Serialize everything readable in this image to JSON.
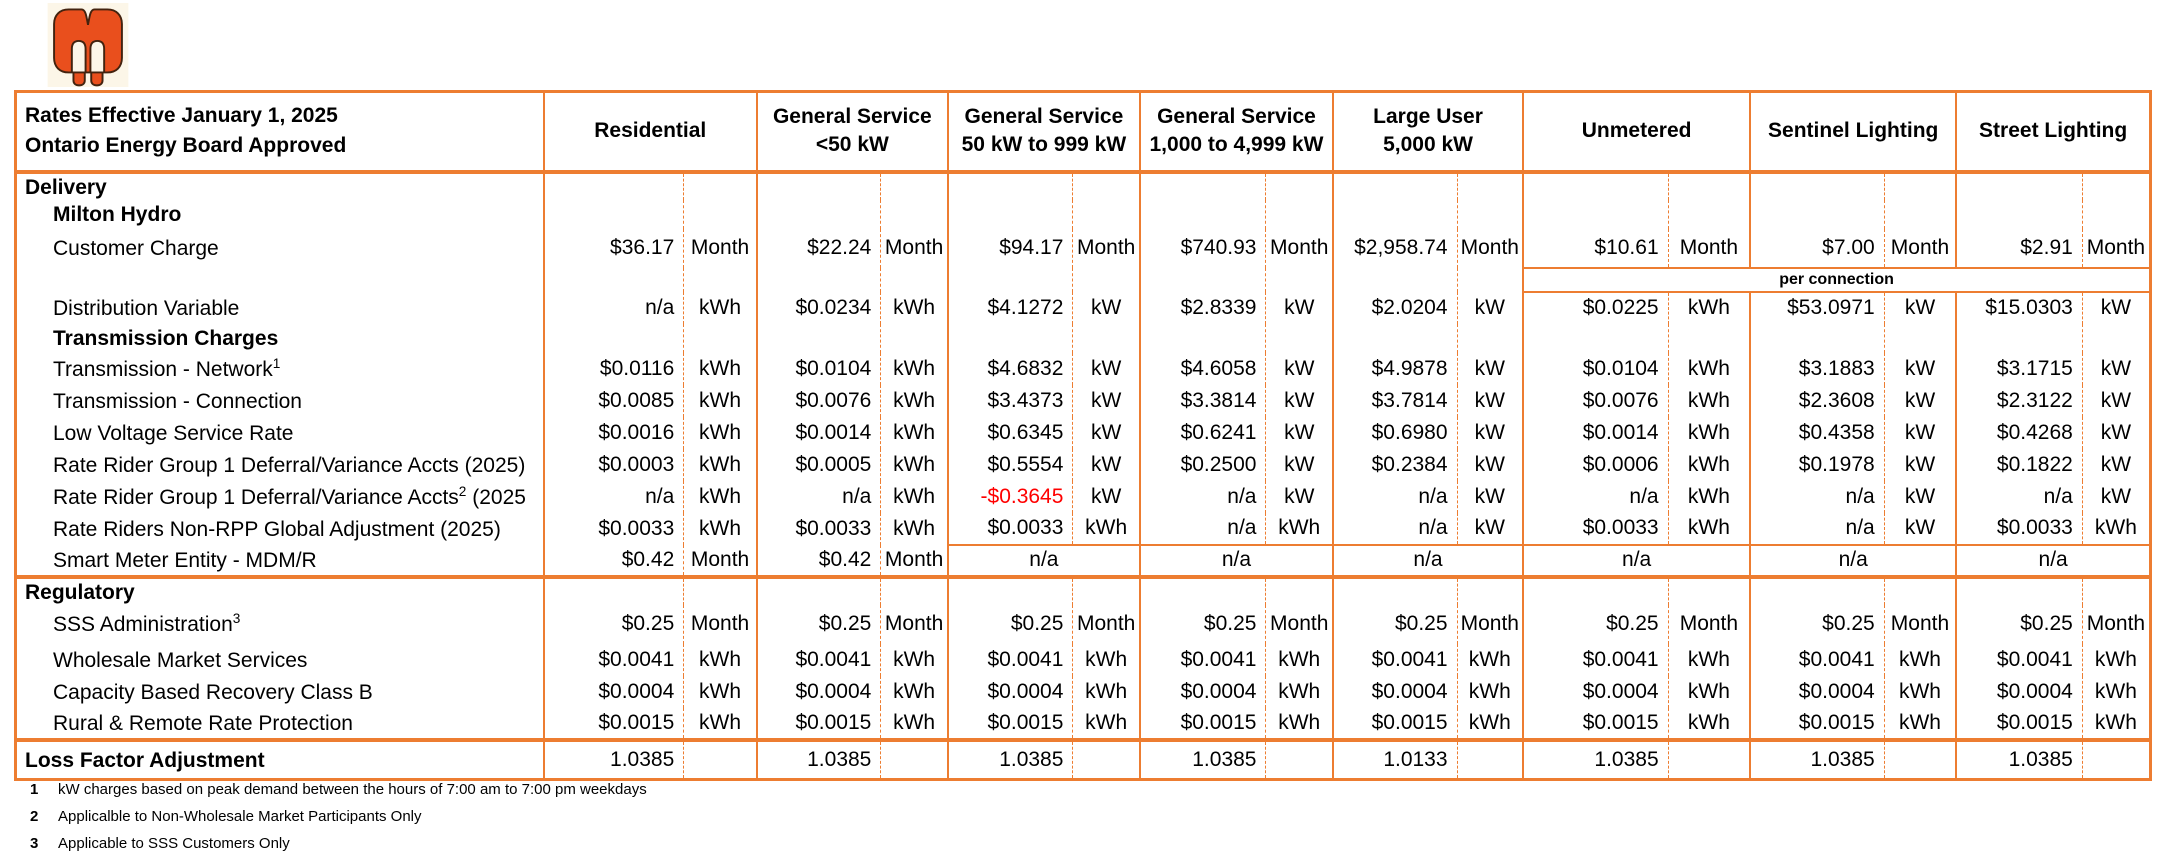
{
  "colors": {
    "table_border": "#ED7D31",
    "negative_value": "#FF0000",
    "logo_orange": "#E94F1D"
  },
  "logo": {
    "name": "milton-hydro-logo"
  },
  "table": {
    "header": {
      "title_line1": "Rates Effective January 1, 2025",
      "title_line2": "Ontario Energy Board Approved",
      "columns": [
        "Residential",
        "General Service\n<50 kW",
        "General Service\n50 kW to 999 kW",
        "General Service\n1,000 to 4,999 kW",
        "Large User\n5,000 kW",
        "Unmetered",
        "Sentinel Lighting",
        "Street Lighting"
      ]
    },
    "rows": [
      {
        "type": "section",
        "indent": 0,
        "label": {
          "pre": "Delivery",
          "sup": "",
          "post": ""
        },
        "cells": [
          {},
          {},
          {},
          {},
          {},
          {},
          {},
          {}
        ]
      },
      {
        "type": "subheader",
        "indent": 1,
        "label": {
          "pre": "Milton Hydro",
          "sup": "",
          "post": ""
        },
        "cells": [
          {},
          {},
          {},
          {},
          {},
          {},
          {},
          {}
        ]
      },
      {
        "type": "item_tall",
        "indent": 1,
        "label": {
          "pre": "Customer Charge",
          "sup": "",
          "post": ""
        },
        "cells": [
          {
            "v": "$36.17",
            "u": "Month"
          },
          {
            "v": "$22.24",
            "u": "Month"
          },
          {
            "v": "$94.17",
            "u": "Month"
          },
          {
            "v": "$740.93",
            "u": "Month"
          },
          {
            "v": "$2,958.74",
            "u": "Month"
          },
          {
            "v": "$10.61",
            "u": "Month"
          },
          {
            "v": "$7.00",
            "u": "Month"
          },
          {
            "v": "$2.91",
            "u": "Month"
          }
        ]
      },
      {
        "type": "band",
        "indent": 0,
        "label": {
          "pre": "",
          "sup": "",
          "post": ""
        },
        "band_text": "per connection",
        "cells": [
          {},
          {},
          {},
          {},
          {}
        ]
      },
      {
        "type": "item",
        "indent": 1,
        "label": {
          "pre": "Distribution Variable",
          "sup": "",
          "post": ""
        },
        "cells": [
          {
            "v": "n/a",
            "u": "kWh"
          },
          {
            "v": "$0.0234",
            "u": "kWh"
          },
          {
            "v": "$4.1272",
            "u": "kW"
          },
          {
            "v": "$2.8339",
            "u": "kW"
          },
          {
            "v": "$2.0204",
            "u": "kW"
          },
          {
            "v": "$0.0225",
            "u": "kWh"
          },
          {
            "v": "$53.0971",
            "u": "kW"
          },
          {
            "v": "$15.0303",
            "u": "kW"
          }
        ]
      },
      {
        "type": "subheader",
        "indent": 1,
        "label": {
          "pre": "Transmission Charges",
          "sup": "",
          "post": ""
        },
        "cells": [
          {},
          {},
          {},
          {},
          {},
          {},
          {},
          {}
        ]
      },
      {
        "type": "item",
        "indent": 1,
        "label": {
          "pre": "Transmission - Network",
          "sup": "1",
          "post": ""
        },
        "cells": [
          {
            "v": "$0.0116",
            "u": "kWh"
          },
          {
            "v": "$0.0104",
            "u": "kWh"
          },
          {
            "v": "$4.6832",
            "u": "kW"
          },
          {
            "v": "$4.6058",
            "u": "kW"
          },
          {
            "v": "$4.9878",
            "u": "kW"
          },
          {
            "v": "$0.0104",
            "u": "kWh"
          },
          {
            "v": "$3.1883",
            "u": "kW"
          },
          {
            "v": "$3.1715",
            "u": "kW"
          }
        ]
      },
      {
        "type": "item",
        "indent": 1,
        "label": {
          "pre": "Transmission - Connection",
          "sup": "",
          "post": ""
        },
        "cells": [
          {
            "v": "$0.0085",
            "u": "kWh"
          },
          {
            "v": "$0.0076",
            "u": "kWh"
          },
          {
            "v": "$3.4373",
            "u": "kW"
          },
          {
            "v": "$3.3814",
            "u": "kW"
          },
          {
            "v": "$3.7814",
            "u": "kW"
          },
          {
            "v": "$0.0076",
            "u": "kWh"
          },
          {
            "v": "$2.3608",
            "u": "kW"
          },
          {
            "v": "$2.3122",
            "u": "kW"
          }
        ]
      },
      {
        "type": "item",
        "indent": 1,
        "label": {
          "pre": "Low Voltage Service Rate",
          "sup": "",
          "post": ""
        },
        "cells": [
          {
            "v": "$0.0016",
            "u": "kWh"
          },
          {
            "v": "$0.0014",
            "u": "kWh"
          },
          {
            "v": "$0.6345",
            "u": "kW"
          },
          {
            "v": "$0.6241",
            "u": "kW"
          },
          {
            "v": "$0.6980",
            "u": "kW"
          },
          {
            "v": "$0.0014",
            "u": "kWh"
          },
          {
            "v": "$0.4358",
            "u": "kW"
          },
          {
            "v": "$0.4268",
            "u": "kW"
          }
        ]
      },
      {
        "type": "item",
        "indent": 1,
        "label": {
          "pre": "Rate Rider Group 1 Deferral/Variance Accts (2025)",
          "sup": "",
          "post": ""
        },
        "cells": [
          {
            "v": "$0.0003",
            "u": "kWh"
          },
          {
            "v": "$0.0005",
            "u": "kWh"
          },
          {
            "v": "$0.5554",
            "u": "kW"
          },
          {
            "v": "$0.2500",
            "u": "kW"
          },
          {
            "v": "$0.2384",
            "u": "kW"
          },
          {
            "v": "$0.0006",
            "u": "kWh"
          },
          {
            "v": "$0.1978",
            "u": "kW"
          },
          {
            "v": "$0.1822",
            "u": "kW"
          }
        ]
      },
      {
        "type": "item",
        "indent": 1,
        "label": {
          "pre": "Rate Rider Group 1 Deferral/Variance Accts",
          "sup": "2",
          "post": " (2025"
        },
        "cells": [
          {
            "v": "n/a",
            "u": "kWh"
          },
          {
            "v": "n/a",
            "u": "kWh"
          },
          {
            "v": "-$0.3645",
            "u": "kW",
            "negative": true
          },
          {
            "v": "n/a",
            "u": "kW"
          },
          {
            "v": "n/a",
            "u": "kW"
          },
          {
            "v": "n/a",
            "u": "kWh"
          },
          {
            "v": "n/a",
            "u": "kW"
          },
          {
            "v": "n/a",
            "u": "kW"
          }
        ]
      },
      {
        "type": "item",
        "indent": 1,
        "label": {
          "pre": "Rate Riders Non-RPP Global Adjustment (2025)",
          "sup": "",
          "post": ""
        },
        "cells": [
          {
            "v": "$0.0033",
            "u": "kWh"
          },
          {
            "v": "$0.0033",
            "u": "kWh"
          },
          {
            "v": "$0.0033",
            "u": "kWh"
          },
          {
            "v": "n/a",
            "u": "kWh"
          },
          {
            "v": "n/a",
            "u": "kW"
          },
          {
            "v": "$0.0033",
            "u": "kWh"
          },
          {
            "v": "n/a",
            "u": "kW"
          },
          {
            "v": "$0.0033",
            "u": "kWh"
          }
        ]
      },
      {
        "type": "item",
        "indent": 1,
        "label": {
          "pre": "Smart Meter Entity - MDM/R",
          "sup": "",
          "post": ""
        },
        "cells": [
          {
            "v": "$0.42",
            "u": "Month"
          },
          {
            "v": "$0.42",
            "u": "Month"
          },
          {
            "m": "n/a"
          },
          {
            "m": "n/a"
          },
          {
            "m": "n/a"
          },
          {
            "m": "n/a"
          },
          {
            "m": "n/a"
          },
          {
            "m": "n/a"
          }
        ]
      },
      {
        "type": "section",
        "indent": 0,
        "divider_top": true,
        "label": {
          "pre": "Regulatory",
          "sup": "",
          "post": ""
        },
        "cells": [
          {},
          {},
          {},
          {},
          {},
          {},
          {},
          {}
        ]
      },
      {
        "type": "item_tall",
        "indent": 1,
        "label": {
          "pre": "SSS Administration",
          "sup": "3",
          "post": ""
        },
        "cells": [
          {
            "v": "$0.25",
            "u": "Month"
          },
          {
            "v": "$0.25",
            "u": "Month"
          },
          {
            "v": "$0.25",
            "u": "Month"
          },
          {
            "v": "$0.25",
            "u": "Month"
          },
          {
            "v": "$0.25",
            "u": "Month"
          },
          {
            "v": "$0.25",
            "u": "Month"
          },
          {
            "v": "$0.25",
            "u": "Month"
          },
          {
            "v": "$0.25",
            "u": "Month"
          }
        ]
      },
      {
        "type": "item",
        "indent": 1,
        "label": {
          "pre": "Wholesale Market Services",
          "sup": "",
          "post": ""
        },
        "cells": [
          {
            "v": "$0.0041",
            "u": "kWh"
          },
          {
            "v": "$0.0041",
            "u": "kWh"
          },
          {
            "v": "$0.0041",
            "u": "kWh"
          },
          {
            "v": "$0.0041",
            "u": "kWh"
          },
          {
            "v": "$0.0041",
            "u": "kWh"
          },
          {
            "v": "$0.0041",
            "u": "kWh"
          },
          {
            "v": "$0.0041",
            "u": "kWh"
          },
          {
            "v": "$0.0041",
            "u": "kWh"
          }
        ]
      },
      {
        "type": "item",
        "indent": 1,
        "label": {
          "pre": "Capacity Based Recovery Class B",
          "sup": "",
          "post": ""
        },
        "cells": [
          {
            "v": "$0.0004",
            "u": "kWh"
          },
          {
            "v": "$0.0004",
            "u": "kWh"
          },
          {
            "v": "$0.0004",
            "u": "kWh"
          },
          {
            "v": "$0.0004",
            "u": "kWh"
          },
          {
            "v": "$0.0004",
            "u": "kWh"
          },
          {
            "v": "$0.0004",
            "u": "kWh"
          },
          {
            "v": "$0.0004",
            "u": "kWh"
          },
          {
            "v": "$0.0004",
            "u": "kWh"
          }
        ]
      },
      {
        "type": "item",
        "indent": 1,
        "label": {
          "pre": "Rural & Remote Rate Protection",
          "sup": "",
          "post": ""
        },
        "cells": [
          {
            "v": "$0.0015",
            "u": "kWh"
          },
          {
            "v": "$0.0015",
            "u": "kWh"
          },
          {
            "v": "$0.0015",
            "u": "kWh"
          },
          {
            "v": "$0.0015",
            "u": "kWh"
          },
          {
            "v": "$0.0015",
            "u": "kWh"
          },
          {
            "v": "$0.0015",
            "u": "kWh"
          },
          {
            "v": "$0.0015",
            "u": "kWh"
          },
          {
            "v": "$0.0015",
            "u": "kWh"
          }
        ]
      },
      {
        "type": "loss",
        "indent": 0,
        "divider_top": true,
        "label": {
          "pre": "Loss Factor Adjustment",
          "sup": "",
          "post": ""
        },
        "cells": [
          {
            "v": "1.0385",
            "u": ""
          },
          {
            "v": "1.0385",
            "u": ""
          },
          {
            "v": "1.0385",
            "u": ""
          },
          {
            "v": "1.0385",
            "u": ""
          },
          {
            "v": "1.0133",
            "u": ""
          },
          {
            "v": "1.0385",
            "u": ""
          },
          {
            "v": "1.0385",
            "u": ""
          },
          {
            "v": "1.0385",
            "u": ""
          }
        ]
      }
    ]
  },
  "footnotes": [
    {
      "num": "1",
      "text": "kW charges based on peak demand between the hours of 7:00 am to 7:00 pm weekdays"
    },
    {
      "num": "2",
      "text": "Applicalble to Non-Wholesale Market Participants Only"
    },
    {
      "num": "3",
      "text": "Applicable to SSS Customers Only"
    }
  ]
}
